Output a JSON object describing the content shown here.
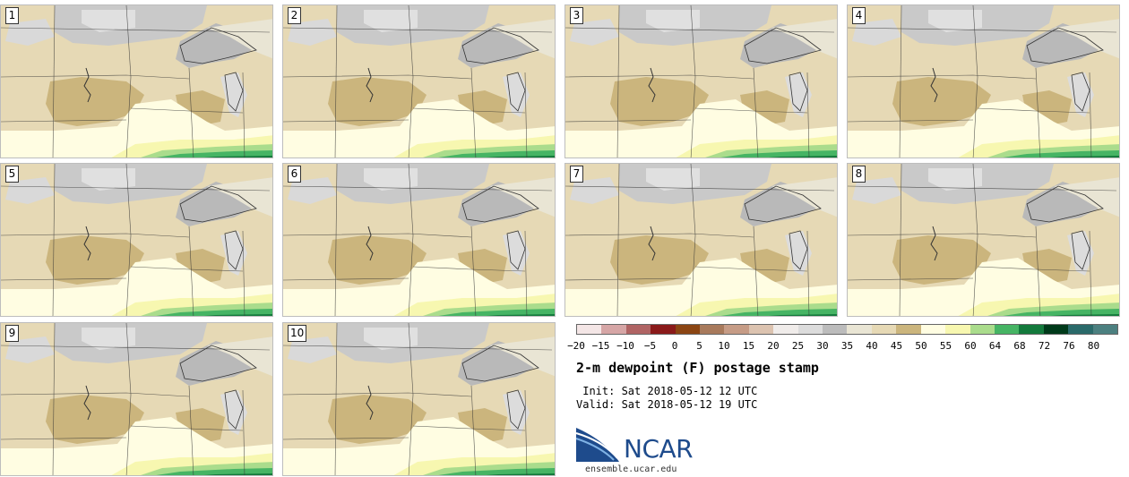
{
  "panels": [
    "1",
    "2",
    "3",
    "4",
    "5",
    "6",
    "7",
    "8",
    "9",
    "10"
  ],
  "colorbar": {
    "ticks": [
      "−20",
      "−15",
      "−10",
      "−5",
      "0",
      "5",
      "10",
      "15",
      "20",
      "25",
      "30",
      "35",
      "40",
      "45",
      "50",
      "55",
      "60",
      "64",
      "68",
      "72",
      "76",
      "80"
    ],
    "colors": [
      "#f4e6e6",
      "#d6a6a6",
      "#b06464",
      "#8a1a1a",
      "#8b4513",
      "#a87a5c",
      "#c69c86",
      "#dcc3b0",
      "#f0ecea",
      "#dcdcdc",
      "#bcbcbc",
      "#e9e5d4",
      "#e6d9b5",
      "#cbb57d",
      "#fffde2",
      "#f7f7b0",
      "#aadc8c",
      "#46b464",
      "#147a3c",
      "#003a1a",
      "#2a6a6a",
      "#4c8080"
    ]
  },
  "title": "2-m dewpoint (F) postage stamp",
  "init_label": " Init: Sat 2018-05-12 12 UTC",
  "valid_label": "Valid: Sat 2018-05-12 19 UTC",
  "logo": {
    "name": "NCAR",
    "url": "ensemble.ucar.edu"
  }
}
